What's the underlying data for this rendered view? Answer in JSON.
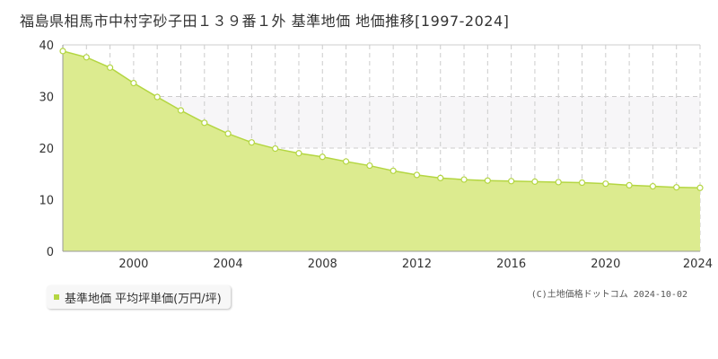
{
  "title": "福島県相馬市中村字砂子田１３９番１外 基準地価 地価推移[1997-2024]",
  "legend": {
    "label": "基準地価 平均坪単価(万円/坪)",
    "color": "#b4d642"
  },
  "copyright": "(C)土地価格ドットコム 2024-10-02",
  "chart_data": {
    "type": "area",
    "title": "福島県相馬市中村字砂子田１３９番１外 基準地価 地価推移[1997-2024]",
    "xlim": [
      1997,
      2024
    ],
    "ylim": [
      0,
      40
    ],
    "yticks": [
      0,
      10,
      20,
      30,
      40
    ],
    "xticks": [
      2000,
      2004,
      2008,
      2012,
      2016,
      2020,
      2024
    ],
    "grid": true,
    "legend_position": "bottom-left",
    "colors": {
      "fill": "#dceb8f",
      "line": "#b4d642",
      "band": "#f7f6f8"
    },
    "series": [
      {
        "name": "基準地価 平均坪単価(万円/坪)",
        "x": [
          1997,
          1998,
          1999,
          2000,
          2001,
          2002,
          2003,
          2004,
          2005,
          2006,
          2007,
          2008,
          2009,
          2010,
          2011,
          2012,
          2013,
          2014,
          2015,
          2016,
          2017,
          2018,
          2019,
          2020,
          2021,
          2022,
          2023,
          2024
        ],
        "y": [
          38.8,
          37.6,
          35.6,
          32.6,
          29.9,
          27.3,
          24.9,
          22.8,
          21.1,
          19.9,
          19.0,
          18.3,
          17.4,
          16.6,
          15.6,
          14.8,
          14.2,
          13.9,
          13.7,
          13.6,
          13.5,
          13.4,
          13.3,
          13.1,
          12.8,
          12.6,
          12.4,
          12.3
        ]
      }
    ]
  }
}
